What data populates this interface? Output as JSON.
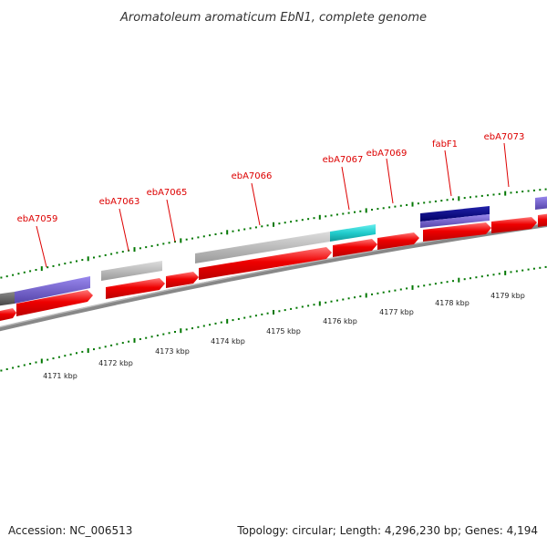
{
  "title": "Aromatoleum aromaticum EbN1, complete genome",
  "footer": {
    "accession": "Accession: NC_006513",
    "summary": "Topology: circular; Length: 4,296,230 bp; Genes: 4,194"
  },
  "gene_labels": [
    "ebA7059",
    "ebA7063",
    "ebA7065",
    "ebA7066",
    "ebA7067",
    "ebA7069",
    "fabF1",
    "ebA7073"
  ],
  "scale_labels": [
    "4171 kbp",
    "4172 kbp",
    "4173 kbp",
    "4174 kbp",
    "4175 kbp",
    "4176 kbp",
    "4177 kbp",
    "4178 kbp",
    "4179 kbp"
  ],
  "colors": {
    "cds": "#ee0000",
    "cds_light": "#ff6666",
    "gene_gray": "#bbbbbb",
    "gene_purple": "#7766cc",
    "gene_navy": "#000088",
    "gene_cyan": "#22cccc",
    "backbone": "#777777",
    "tick": "#007700",
    "label": "#dd0000"
  }
}
